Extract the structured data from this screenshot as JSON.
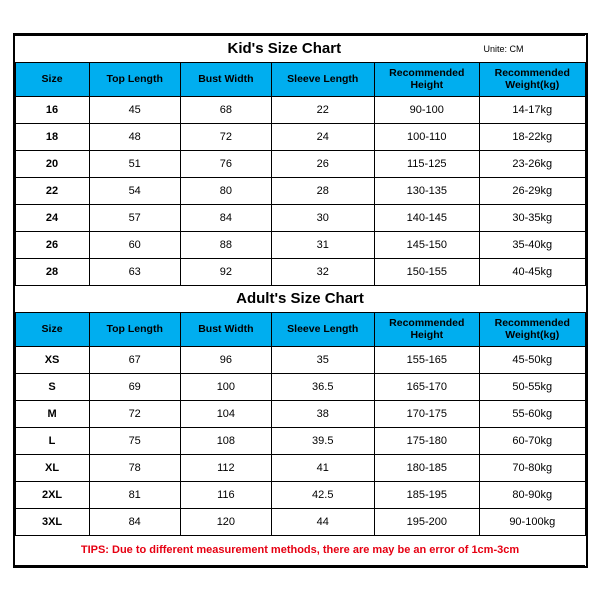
{
  "kids": {
    "title": "Kid's Size Chart",
    "unit": "Unite: CM",
    "columns": [
      "Size",
      "Top Length",
      "Bust Width",
      "Sleeve Length",
      "Recommended Height",
      "Recommended Weight(kg)"
    ],
    "rows": [
      [
        "16",
        "45",
        "68",
        "22",
        "90-100",
        "14-17kg"
      ],
      [
        "18",
        "48",
        "72",
        "24",
        "100-110",
        "18-22kg"
      ],
      [
        "20",
        "51",
        "76",
        "26",
        "115-125",
        "23-26kg"
      ],
      [
        "22",
        "54",
        "80",
        "28",
        "130-135",
        "26-29kg"
      ],
      [
        "24",
        "57",
        "84",
        "30",
        "140-145",
        "30-35kg"
      ],
      [
        "26",
        "60",
        "88",
        "31",
        "145-150",
        "35-40kg"
      ],
      [
        "28",
        "63",
        "92",
        "32",
        "150-155",
        "40-45kg"
      ]
    ]
  },
  "adults": {
    "title": "Adult's Size Chart",
    "columns": [
      "Size",
      "Top Length",
      "Bust Width",
      "Sleeve Length",
      "Recommended Height",
      "Recommended Weight(kg)"
    ],
    "rows": [
      [
        "XS",
        "67",
        "96",
        "35",
        "155-165",
        "45-50kg"
      ],
      [
        "S",
        "69",
        "100",
        "36.5",
        "165-170",
        "50-55kg"
      ],
      [
        "M",
        "72",
        "104",
        "38",
        "170-175",
        "55-60kg"
      ],
      [
        "L",
        "75",
        "108",
        "39.5",
        "175-180",
        "60-70kg"
      ],
      [
        "XL",
        "78",
        "112",
        "41",
        "180-185",
        "70-80kg"
      ],
      [
        "2XL",
        "81",
        "116",
        "42.5",
        "185-195",
        "80-90kg"
      ],
      [
        "3XL",
        "84",
        "120",
        "44",
        "195-200",
        "90-100kg"
      ]
    ]
  },
  "tips": "TIPS: Due to different measurement methods, there are may be an error of 1cm-3cm"
}
